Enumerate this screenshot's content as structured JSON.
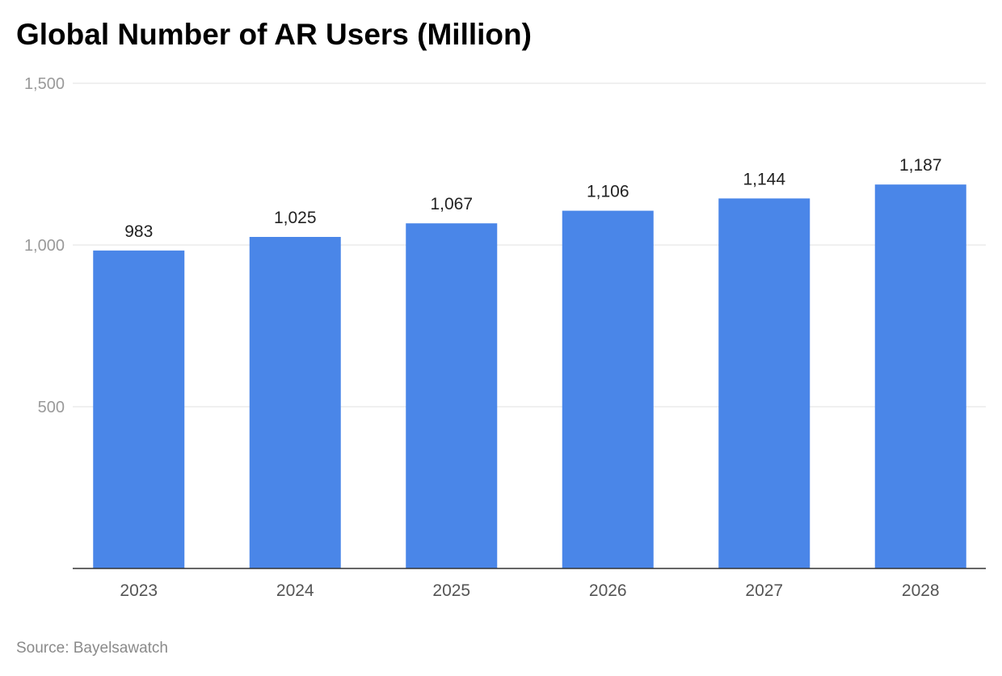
{
  "chart_data": {
    "type": "bar",
    "title": "Global Number of AR Users (Million)",
    "categories": [
      "2023",
      "2024",
      "2025",
      "2026",
      "2027",
      "2028"
    ],
    "values": [
      983,
      1025,
      1067,
      1106,
      1144,
      1187
    ],
    "data_labels": [
      "983",
      "1,025",
      "1,067",
      "1,106",
      "1,144",
      "1,187"
    ],
    "xlabel": "",
    "ylabel": "",
    "ylim": [
      0,
      1500
    ],
    "yticks": [
      500,
      1000,
      1500
    ],
    "ytick_labels": [
      "500",
      "1,000",
      "1,500"
    ],
    "grid": true,
    "legend": "none",
    "bar_color": "#4a86e8",
    "source": "Source: Bayelsawatch"
  }
}
